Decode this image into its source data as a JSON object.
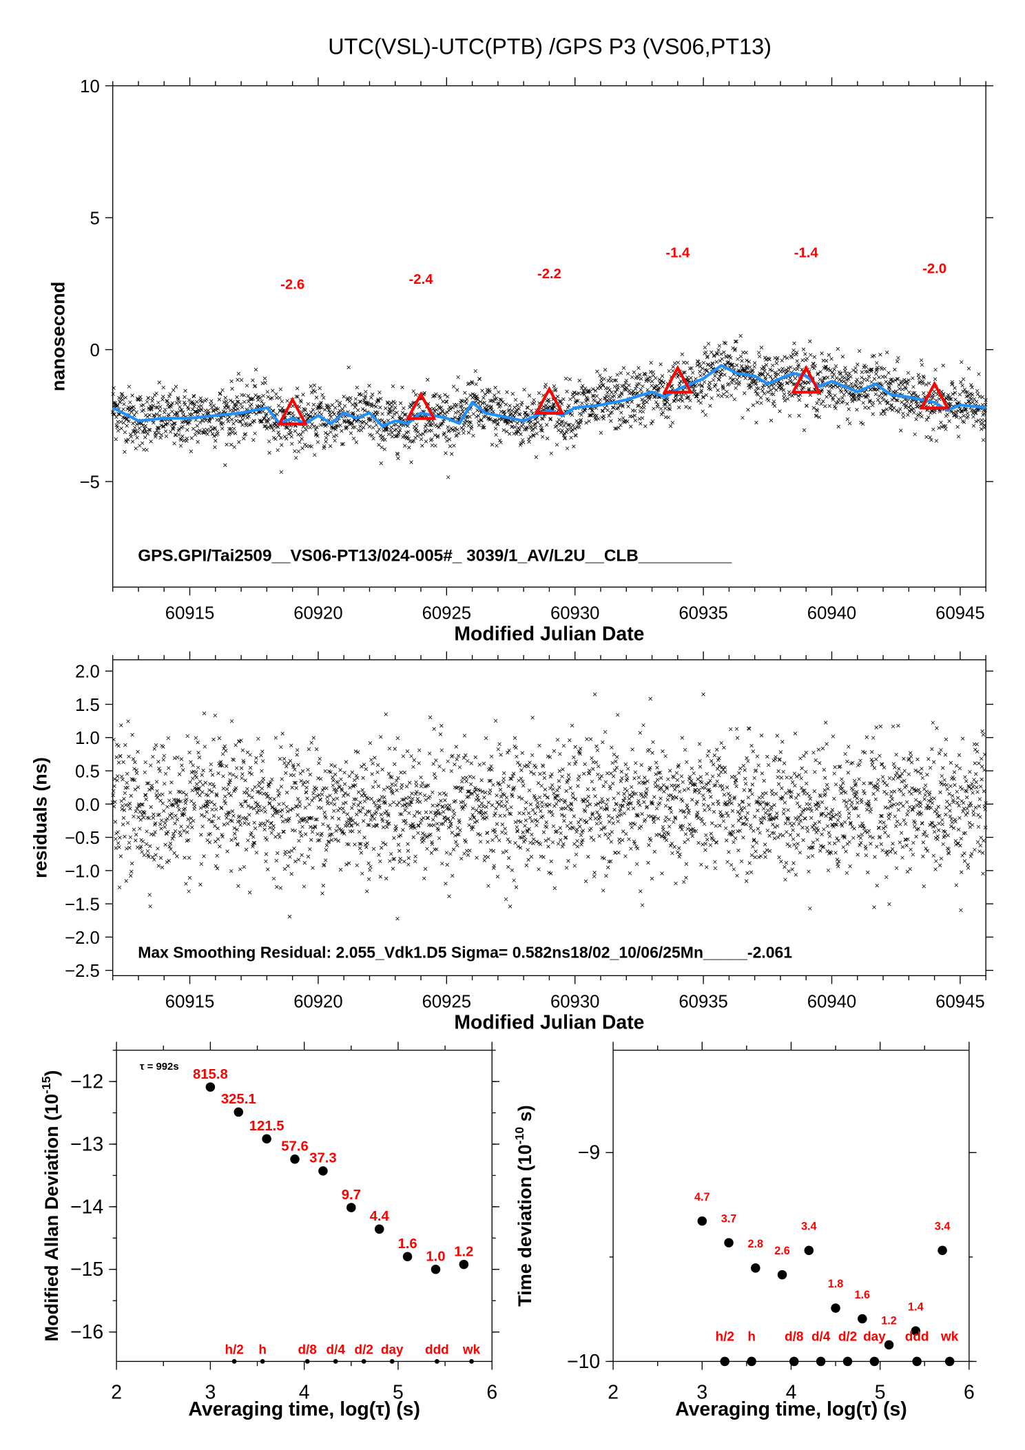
{
  "title": "UTC(VSL)-UTC(PTB)  /GPS  P3  (VS06,PT13)",
  "colors": {
    "smooth_line": "#1e90ff",
    "triangles": "#ff0000",
    "labels": "#ff0000",
    "points": "#000000"
  },
  "chart_data": [
    {
      "id": "time-series",
      "type": "scatter",
      "xlabel": "Modified Julian Date",
      "ylabel": "nanosecond",
      "xlim": [
        60912,
        60946
      ],
      "ylim": [
        -9,
        10
      ],
      "xticks": [
        60915,
        60920,
        60925,
        60930,
        60935,
        60940,
        60945
      ],
      "yticks": [
        10,
        5,
        0,
        -5
      ],
      "ytick_labels": [
        "10",
        "5",
        "0",
        "−5"
      ],
      "note": "GPS.GPI/Tai2509__VS06-PT13/024-005#_  3039/1_AV/L2U__CLB__________",
      "point_marker": "x",
      "scatter_spread_ns": 0.55,
      "smooth_curve": {
        "x": [
          60912,
          60913,
          60914,
          60915,
          60916,
          60917,
          60918,
          60918.5,
          60919,
          60919.5,
          60920,
          60920.5,
          60921,
          60921.5,
          60922,
          60922.5,
          60923,
          60923.5,
          60924,
          60924.5,
          60925,
          60925.5,
          60926,
          60926.5,
          60927,
          60928,
          60929,
          60929.5,
          60930,
          60931,
          60932,
          60933,
          60933.5,
          60934,
          60935,
          60935.7,
          60936.3,
          60937,
          60937.5,
          60938.5,
          60939,
          60939.5,
          60940,
          60941,
          60941.7,
          60942.3,
          60943,
          60944,
          60944.5,
          60945,
          60946
        ],
        "y": [
          -2.2,
          -2.7,
          -2.6,
          -2.6,
          -2.5,
          -2.4,
          -2.2,
          -2.8,
          -2.6,
          -2.8,
          -2.5,
          -2.8,
          -2.4,
          -2.6,
          -2.4,
          -2.9,
          -2.7,
          -2.8,
          -2.4,
          -2.5,
          -2.6,
          -2.8,
          -2.0,
          -2.4,
          -2.5,
          -2.7,
          -2.3,
          -2.5,
          -2.2,
          -2.1,
          -1.9,
          -1.6,
          -1.8,
          -1.5,
          -1.1,
          -0.6,
          -0.9,
          -1.0,
          -1.3,
          -0.9,
          -1.0,
          -1.4,
          -1.2,
          -1.6,
          -1.3,
          -1.7,
          -1.8,
          -2.0,
          -2.3,
          -2.1,
          -2.2
        ]
      },
      "triangles": [
        {
          "x": 60919,
          "y": -2.6,
          "label": "-2.6"
        },
        {
          "x": 60924,
          "y": -2.4,
          "label": "-2.4"
        },
        {
          "x": 60929,
          "y": -2.2,
          "label": "-2.2"
        },
        {
          "x": 60934,
          "y": -1.4,
          "label": "-1.4"
        },
        {
          "x": 60939,
          "y": -1.4,
          "label": "-1.4"
        },
        {
          "x": 60944,
          "y": -2.0,
          "label": "-2.0"
        }
      ]
    },
    {
      "id": "residuals",
      "type": "scatter",
      "xlabel": "Modified Julian Date",
      "ylabel": "residuals (ns)",
      "xlim": [
        60912,
        60946
      ],
      "ylim": [
        -2.58,
        2.17
      ],
      "xticks": [
        60915,
        60920,
        60925,
        60930,
        60935,
        60940,
        60945
      ],
      "yticks": [
        2.0,
        1.5,
        1.0,
        0.5,
        0.0,
        -0.5,
        -1.0,
        -1.5,
        -2.0,
        -2.5
      ],
      "ytick_labels": [
        "2.0",
        "1.5",
        "1.0",
        "0.5",
        "0.0",
        "−0.5",
        "−1.0",
        "−1.5",
        "−2.0",
        "−2.5"
      ],
      "note": "Max Smoothing Residual: 2.055_Vdk1.D5  Sigma= 0.582ns18/02_10/06/25Mn_____-2.061",
      "sigma_ns": 0.582,
      "max_residual_ns": 2.055,
      "point_marker": "x"
    },
    {
      "id": "mdev",
      "type": "scatter",
      "xlabel": "Averaging time, log(τ) (s)",
      "ylabel_main": "Modified Allan Deviation (10",
      "ylabel_exp": "-15",
      "ylabel_end": ")",
      "xlim": [
        2,
        6
      ],
      "ylim": [
        -16.47,
        -11.5
      ],
      "xticks": [
        2,
        3,
        4,
        5,
        6
      ],
      "yticks": [
        -12,
        -13,
        -14,
        -15,
        -16
      ],
      "ytick_labels": [
        "−12",
        "−13",
        "−14",
        "−15",
        "−16"
      ],
      "tau_note": "τ = 992s",
      "points": [
        {
          "x": 3.0,
          "label": "815.8",
          "value": 815.8
        },
        {
          "x": 3.3,
          "label": "325.1",
          "value": 325.1
        },
        {
          "x": 3.6,
          "label": "121.5",
          "value": 121.5
        },
        {
          "x": 3.9,
          "label": "57.6",
          "value": 57.6
        },
        {
          "x": 4.2,
          "label": "37.3",
          "value": 37.3
        },
        {
          "x": 4.5,
          "label": "9.7",
          "value": 9.7
        },
        {
          "x": 4.8,
          "label": "4.4",
          "value": 4.4
        },
        {
          "x": 5.1,
          "label": "1.6",
          "value": 1.6
        },
        {
          "x": 5.4,
          "label": "1.0",
          "value": 1.0
        },
        {
          "x": 5.7,
          "label": "1.2",
          "value": 1.2
        }
      ],
      "value_unit_exponent": -15,
      "markers": [
        {
          "x": 3.255,
          "label": "h/2"
        },
        {
          "x": 3.556,
          "label": "h"
        },
        {
          "x": 4.033,
          "label": "d/8"
        },
        {
          "x": 4.334,
          "label": "d/4"
        },
        {
          "x": 4.635,
          "label": "d/2"
        },
        {
          "x": 4.936,
          "label": "day"
        },
        {
          "x": 5.414,
          "label": "ddd"
        },
        {
          "x": 5.782,
          "label": "wk"
        }
      ]
    },
    {
      "id": "tdev",
      "type": "scatter",
      "xlabel": "Averaging time, log(τ) (s)",
      "ylabel_main": "Time deviation (10",
      "ylabel_exp": "-10",
      "ylabel_end": " s)",
      "xlim": [
        2,
        6
      ],
      "ylim": [
        -10,
        -8.51
      ],
      "xticks": [
        2,
        3,
        4,
        5,
        6
      ],
      "yticks": [
        -9,
        -10
      ],
      "ytick_labels": [
        "−9",
        "−10"
      ],
      "points": [
        {
          "x": 3.0,
          "label": "4.7",
          "value": 4.7
        },
        {
          "x": 3.3,
          "label": "3.7",
          "value": 3.7
        },
        {
          "x": 3.6,
          "label": "2.8",
          "value": 2.8
        },
        {
          "x": 3.9,
          "label": "2.6",
          "value": 2.6
        },
        {
          "x": 4.2,
          "label": "3.4",
          "value": 3.4
        },
        {
          "x": 4.5,
          "label": "1.8",
          "value": 1.8
        },
        {
          "x": 4.8,
          "label": "1.6",
          "value": 1.6
        },
        {
          "x": 5.1,
          "label": "1.2",
          "value": 1.2
        },
        {
          "x": 5.4,
          "label": "1.4",
          "value": 1.4
        },
        {
          "x": 5.7,
          "label": "3.4",
          "value": 3.4
        }
      ],
      "value_unit_exponent": -10,
      "markers": [
        {
          "x": 3.255,
          "label": "h/2"
        },
        {
          "x": 3.556,
          "label": "h"
        },
        {
          "x": 4.033,
          "label": "d/8"
        },
        {
          "x": 4.334,
          "label": "d/4"
        },
        {
          "x": 4.635,
          "label": "d/2"
        },
        {
          "x": 4.936,
          "label": "day"
        },
        {
          "x": 5.414,
          "label": "ddd"
        },
        {
          "x": 5.782,
          "label": "wk"
        }
      ]
    }
  ]
}
